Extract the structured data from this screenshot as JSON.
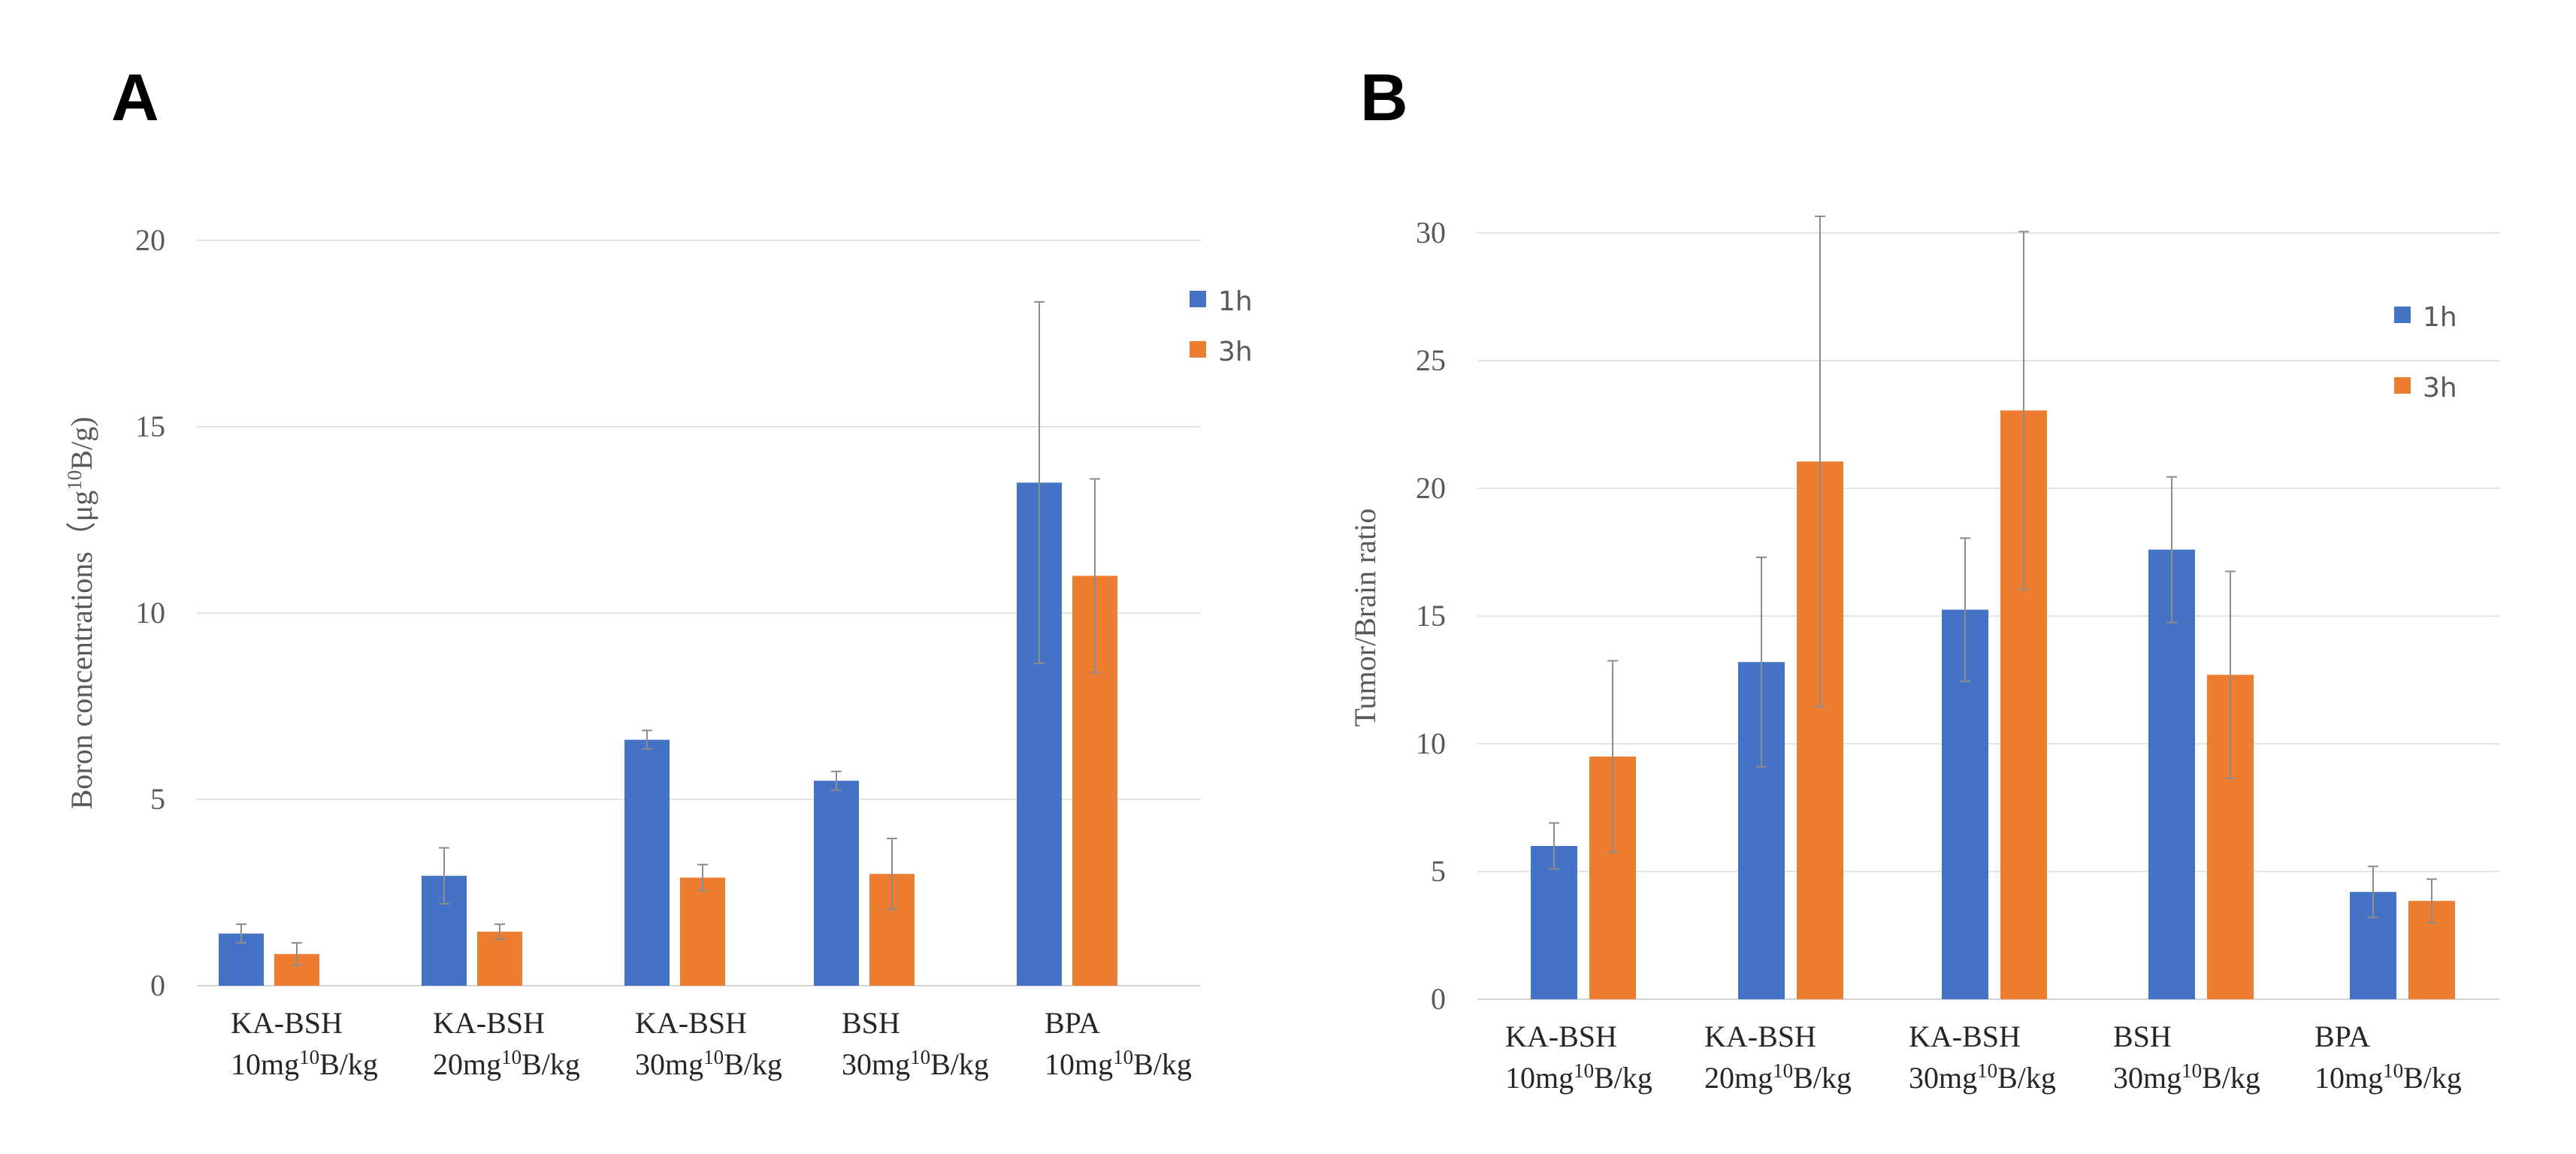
{
  "colors": {
    "series_1h": "#4472c4",
    "series_3h": "#ed7d31"
  },
  "chart_data": [
    {
      "type": "bar",
      "panel": "A",
      "title": "",
      "xlabel": "",
      "ylabel_prefix": "Boron concentrations（μg",
      "ylabel_sup": "10",
      "ylabel_suffix": "B/g)",
      "ylim": [
        0,
        20
      ],
      "yticks": [
        0,
        5,
        10,
        15,
        20
      ],
      "grid": true,
      "legend_position": "top-right",
      "categories": [
        {
          "line1": "KA-BSH",
          "pre": "10mg",
          "sup": "10",
          "post": "B/kg"
        },
        {
          "line1": "KA-BSH",
          "pre": "20mg",
          "sup": "10",
          "post": "B/kg"
        },
        {
          "line1": "KA-BSH",
          "pre": "30mg",
          "sup": "10",
          "post": "B/kg"
        },
        {
          "line1": "BSH",
          "pre": "30mg",
          "sup": "10",
          "post": "B/kg"
        },
        {
          "line1": "BPA",
          "pre": "10mg",
          "sup": "10",
          "post": "B/kg"
        }
      ],
      "series": [
        {
          "name": "1h",
          "values": [
            1.4,
            2.95,
            6.6,
            5.5,
            13.5
          ],
          "errors": [
            0.25,
            0.75,
            0.25,
            0.25,
            4.85
          ]
        },
        {
          "name": "3h",
          "values": [
            0.85,
            1.45,
            2.9,
            3.0,
            11.0
          ],
          "errors": [
            0.3,
            0.2,
            0.35,
            0.95,
            2.6
          ]
        }
      ]
    },
    {
      "type": "bar",
      "panel": "B",
      "title": "",
      "xlabel": "",
      "ylabel": "Tumor/Brain ratio",
      "ylim": [
        0,
        30
      ],
      "yticks": [
        0,
        5,
        10,
        15,
        20,
        25,
        30
      ],
      "grid": true,
      "legend_position": "top-right",
      "categories": [
        {
          "line1": "KA-BSH",
          "pre": "10mg",
          "sup": "10",
          "post": "B/kg"
        },
        {
          "line1": "KA-BSH",
          "pre": "20mg",
          "sup": "10",
          "post": "B/kg"
        },
        {
          "line1": "KA-BSH",
          "pre": "30mg",
          "sup": "10",
          "post": "B/kg"
        },
        {
          "line1": "BSH",
          "pre": "30mg",
          "sup": "10",
          "post": "B/kg"
        },
        {
          "line1": "BPA",
          "pre": "10mg",
          "sup": "10",
          "post": "B/kg"
        }
      ],
      "series": [
        {
          "name": "1h",
          "values": [
            6.0,
            13.2,
            15.25,
            17.6,
            4.2
          ],
          "errors": [
            0.9,
            4.1,
            2.8,
            2.85,
            1.0
          ]
        },
        {
          "name": "3h",
          "values": [
            9.5,
            21.05,
            23.05,
            12.7,
            3.85
          ],
          "errors": [
            3.75,
            9.6,
            7.0,
            4.05,
            0.85
          ]
        }
      ]
    }
  ]
}
